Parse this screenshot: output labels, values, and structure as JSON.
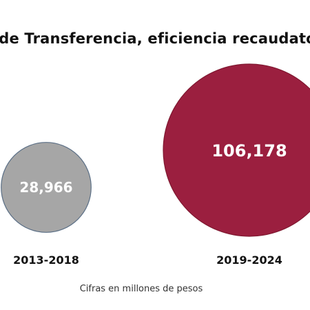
{
  "chart_data": {
    "type": "bubble",
    "title": "s de Transferencia, eficiencia recaudato",
    "categories": [
      "2013-2018",
      "2019-2024"
    ],
    "values": [
      28966,
      106178
    ],
    "value_labels": [
      "28,966",
      "106,178"
    ],
    "colors": [
      "#a6a6a6",
      "#9b1f3f"
    ],
    "outline_colors": [
      "#5b6f86",
      "#7f1830"
    ],
    "note": "Cifras en millones de pesos"
  }
}
